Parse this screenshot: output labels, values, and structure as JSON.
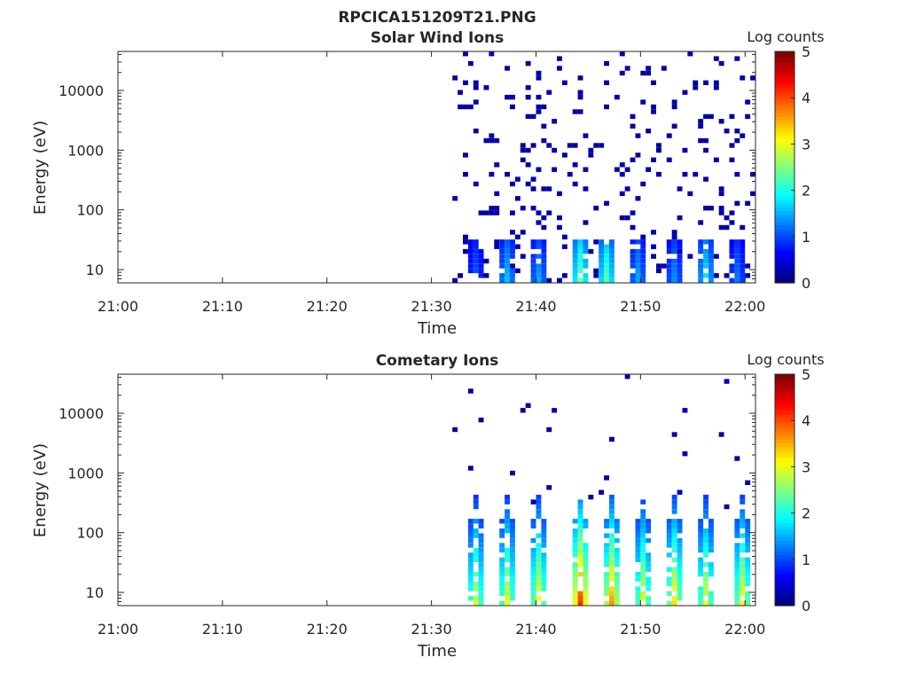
{
  "figure": {
    "title": "RPCICA151209T21.PNG"
  },
  "chart_data": [
    {
      "type": "heatmap",
      "title": "Solar Wind Ions",
      "xlabel": "Time",
      "ylabel": "Energy (eV)",
      "x_ticks": [
        "21:00",
        "21:10",
        "21:20",
        "21:30",
        "21:40",
        "21:50",
        "22:00"
      ],
      "x_range": [
        "21:00",
        "22:01"
      ],
      "y_scale": "log",
      "y_ticks": [
        10,
        100,
        1000,
        10000
      ],
      "y_range": [
        6,
        45000
      ],
      "colorbar": {
        "label": "Log counts",
        "ticks": [
          0,
          1,
          2,
          3,
          4,
          5
        ],
        "range": [
          0,
          5
        ],
        "colormap": "jet"
      },
      "data_start": "21:32",
      "bursts": [
        {
          "time": "21:34",
          "level": 0.9
        },
        {
          "time": "21:37",
          "level": 1.3
        },
        {
          "time": "21:40",
          "level": 1.2
        },
        {
          "time": "21:44",
          "level": 2.0
        },
        {
          "time": "21:46.5",
          "level": 1.9
        },
        {
          "time": "21:49.5",
          "level": 1.2
        },
        {
          "time": "21:53",
          "level": 1.1
        },
        {
          "time": "21:56",
          "level": 1.5
        },
        {
          "time": "21:59",
          "level": 1.0
        }
      ],
      "background_level": 0.2,
      "grid": false,
      "legend": "colorbar-right"
    },
    {
      "type": "heatmap",
      "title": "Cometary Ions",
      "xlabel": "Time",
      "ylabel": "Energy (eV)",
      "x_ticks": [
        "21:00",
        "21:10",
        "21:20",
        "21:30",
        "21:40",
        "21:50",
        "22:00"
      ],
      "x_range": [
        "21:00",
        "22:01"
      ],
      "y_scale": "log",
      "y_ticks": [
        10,
        100,
        1000,
        10000
      ],
      "y_range": [
        6,
        45000
      ],
      "colorbar": {
        "label": "Log counts",
        "ticks": [
          0,
          1,
          2,
          3,
          4,
          5
        ],
        "range": [
          0,
          5
        ],
        "colormap": "jet"
      },
      "data_start": "21:32",
      "bursts": [
        {
          "time": "21:34",
          "level": 2.3
        },
        {
          "time": "21:37",
          "level": 2.4
        },
        {
          "time": "21:40",
          "level": 2.5
        },
        {
          "time": "21:44",
          "level": 3.3
        },
        {
          "time": "21:47",
          "level": 2.9
        },
        {
          "time": "21:50",
          "level": 2.4
        },
        {
          "time": "21:53",
          "level": 2.6
        },
        {
          "time": "21:56",
          "level": 2.4
        },
        {
          "time": "21:59.5",
          "level": 2.5
        }
      ],
      "background_level": 0.2,
      "grid": false,
      "legend": "colorbar-right"
    }
  ]
}
